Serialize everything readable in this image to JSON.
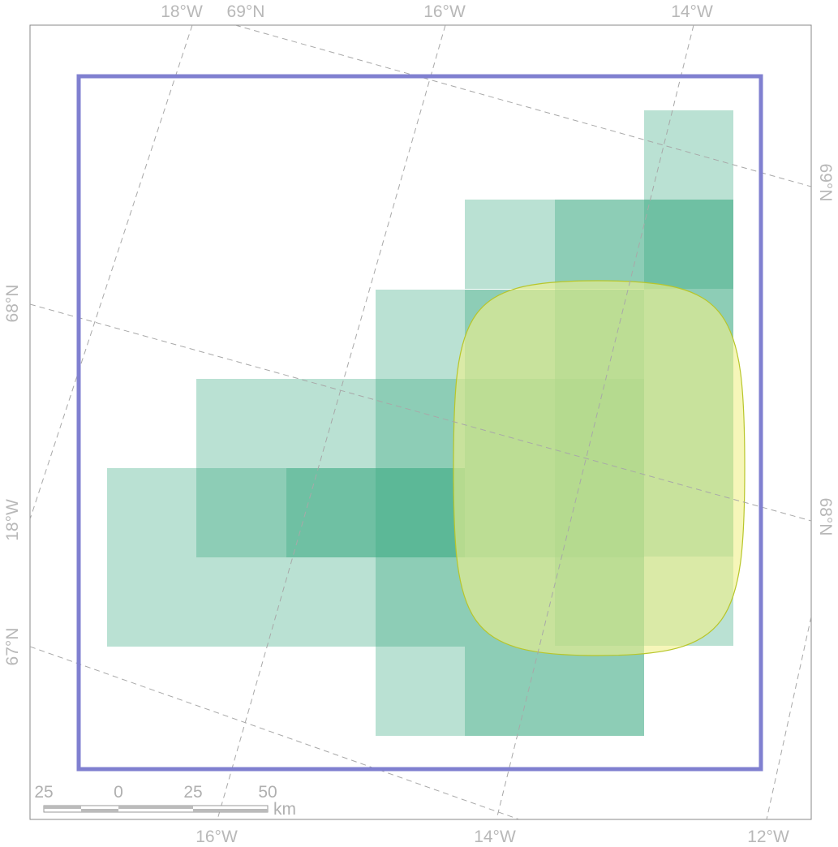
{
  "map": {
    "graticule_labels": {
      "top": [
        "18°W",
        "69°N",
        "16°W",
        "14°W"
      ],
      "bottom": [
        "16°W",
        "14°W",
        "12°W"
      ],
      "left": [
        "68°N",
        "18°W",
        "67°N"
      ],
      "right": [
        "69°N",
        "68°N"
      ]
    },
    "scale_bar": {
      "labels": [
        "25",
        "0",
        "25",
        "50"
      ],
      "unit": "km"
    },
    "colors": {
      "extent_outline": "#8080d0",
      "grid_cell": "#3aa882",
      "grid_cell_opacity": 0.35,
      "area_fill": "#f0f08a",
      "area_fill_opacity": 0.6,
      "area_stroke": "#b8c62a"
    }
  }
}
